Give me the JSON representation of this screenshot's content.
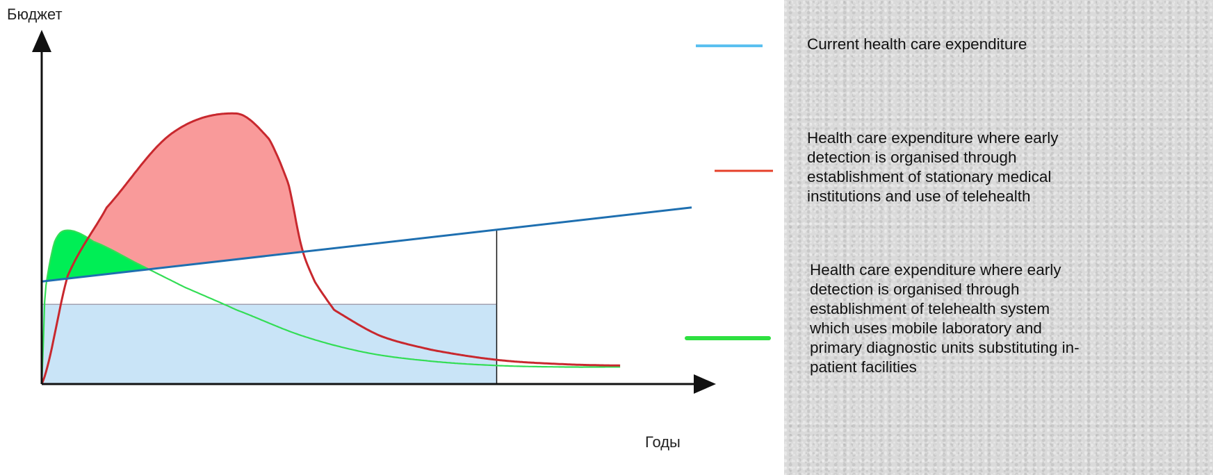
{
  "chart_data": {
    "type": "line",
    "xlabel": "Годы",
    "ylabel": "Бюджет",
    "grid": false,
    "legend_placement": "right",
    "series": [
      {
        "name": "Current health care expenditure",
        "color": "#1e6fb0",
        "legend_color": "#5bc0f0",
        "x": [
          0,
          1
        ],
        "y": [
          0.36,
          0.62
        ]
      },
      {
        "name": "Health care expenditure where early detection is organised through establishment of stationary medical institutions and use of telehealth",
        "color": "#c8282e",
        "legend_color": "#e6402a",
        "x": [
          0,
          0.04,
          0.1,
          0.2,
          0.3,
          0.35,
          0.38,
          0.4,
          0.42,
          0.45,
          0.52,
          0.6,
          0.7,
          0.8,
          0.89
        ],
        "y": [
          0.0,
          0.38,
          0.62,
          0.88,
          0.95,
          0.86,
          0.7,
          0.48,
          0.36,
          0.26,
          0.17,
          0.12,
          0.085,
          0.07,
          0.065
        ]
      },
      {
        "name": "Health care expenditure where early detection is organised through establishment of telehealth system which uses mobile laboratory and  primary diagnostic units substituting in-patient facilities",
        "color": "#33dd55",
        "legend_color": "#2ee040",
        "x": [
          0,
          0.005,
          0.02,
          0.04,
          0.08,
          0.15,
          0.22,
          0.3,
          0.4,
          0.5,
          0.6,
          0.7,
          0.8,
          0.89
        ],
        "y": [
          0.0,
          0.32,
          0.5,
          0.54,
          0.5,
          0.42,
          0.34,
          0.26,
          0.17,
          0.11,
          0.08,
          0.065,
          0.06,
          0.06
        ]
      }
    ],
    "reference_level": 0.28,
    "reference_x_end": 0.7,
    "region_colors": {
      "red_gain": "#f99a9a",
      "green_gain": "#00ee55",
      "baseline_fill": "#c9e4f7"
    }
  },
  "legend_items": [
    "Current health care expenditure",
    "Health care expenditure where early detection is organised through establishment of stationary medical institutions and use of telehealth",
    "Health care expenditure where early detection is organised through establishment of telehealth system which uses mobile laboratory and  primary diagnostic units substituting in-patient facilities"
  ]
}
